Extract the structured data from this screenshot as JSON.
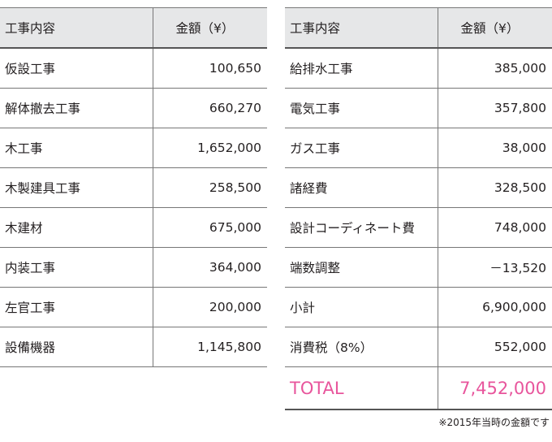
{
  "header": {
    "item": "工事内容",
    "amount": "金額（¥）"
  },
  "left_rows": [
    {
      "item": "仮設工事",
      "amount": "100,650"
    },
    {
      "item": "解体撤去工事",
      "amount": "660,270"
    },
    {
      "item": "木工事",
      "amount": "1,652,000"
    },
    {
      "item": "木製建具工事",
      "amount": "258,500"
    },
    {
      "item": "木建材",
      "amount": "675,000"
    },
    {
      "item": "内装工事",
      "amount": "364,000"
    },
    {
      "item": "左官工事",
      "amount": "200,000"
    },
    {
      "item": "設備機器",
      "amount": "1,145,800"
    }
  ],
  "right_rows": [
    {
      "item": "給排水工事",
      "amount": "385,000"
    },
    {
      "item": "電気工事",
      "amount": "357,800"
    },
    {
      "item": "ガス工事",
      "amount": "38,000"
    },
    {
      "item": "諸経費",
      "amount": "328,500"
    },
    {
      "item": "設計コーディネート費",
      "amount": "748,000"
    },
    {
      "item": "端数調整",
      "amount": "－13,520"
    },
    {
      "item": "小計",
      "amount": "6,900,000"
    },
    {
      "item": "消費税（8%）",
      "amount": "552,000"
    }
  ],
  "total": {
    "label": "TOTAL",
    "amount": "7,452,000",
    "color": "#e8559c"
  },
  "note": "※2015年当時の金額です"
}
